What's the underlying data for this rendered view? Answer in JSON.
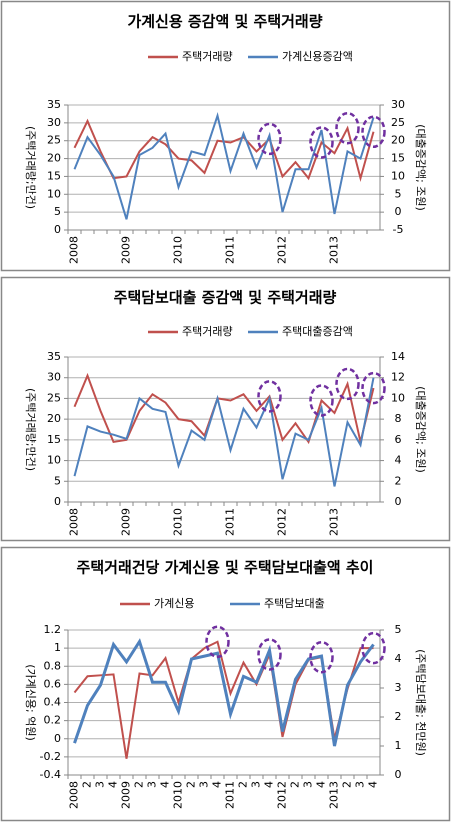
{
  "chart_data": [
    {
      "type": "line",
      "title": "가계신용 증감액  및 주택거래량",
      "categories": [
        "2008",
        null,
        null,
        null,
        "2009",
        null,
        null,
        null,
        "2010",
        null,
        null,
        null,
        "2011",
        null,
        null,
        null,
        "2012",
        null,
        null,
        null,
        "2013",
        null,
        null,
        null
      ],
      "series": [
        {
          "name": "주택거래량",
          "color": "#c0504d",
          "axis": "y",
          "values": [
            23,
            30.5,
            22,
            14.5,
            15,
            22,
            26,
            24,
            20,
            19.5,
            16,
            25,
            24.5,
            26,
            22,
            25.5,
            15,
            19,
            14.5,
            24.5,
            21.5,
            28.5,
            14.5,
            27.5
          ]
        },
        {
          "name": "가계신용증감액",
          "color": "#4f81bd",
          "axis": "y2",
          "values": [
            12,
            21,
            16,
            10,
            -2,
            16,
            18,
            22,
            7,
            17,
            16,
            27,
            11.5,
            22,
            12.5,
            21.5,
            0,
            12,
            12,
            23,
            -0.5,
            17,
            15,
            26.5
          ]
        }
      ],
      "ylim": [
        0,
        35
      ],
      "yticks": [
        0,
        5,
        10,
        15,
        20,
        25,
        30,
        35
      ],
      "y2lim": [
        -5,
        30
      ],
      "y2ticks": [
        -5,
        0,
        5,
        10,
        15,
        20,
        25,
        30
      ],
      "ylabel": "(주택거래량;만건)",
      "y2label": "(대출증감액; 조원)",
      "grid": true
    },
    {
      "type": "line",
      "title": "주택담보대출 증감액  및 주택거래량",
      "categories": [
        "2008",
        null,
        null,
        null,
        "2009",
        null,
        null,
        null,
        "2010",
        null,
        null,
        null,
        "2011",
        null,
        null,
        null,
        "2012",
        null,
        null,
        null,
        "2013",
        null,
        null,
        null
      ],
      "series": [
        {
          "name": "주택거래량",
          "color": "#c0504d",
          "axis": "y",
          "values": [
            23,
            30.5,
            22,
            14.5,
            15,
            22,
            26,
            24,
            20,
            19.5,
            16,
            25,
            24.5,
            26,
            22,
            25.5,
            15,
            19,
            14.5,
            24.5,
            21.5,
            28.5,
            14.5,
            27.5
          ]
        },
        {
          "name": "주택대출증감액",
          "color": "#4f81bd",
          "axis": "y2",
          "values": [
            2.5,
            7.3,
            6.8,
            6.5,
            6.1,
            10,
            9,
            8.7,
            3.5,
            6.9,
            6,
            10,
            5,
            9,
            7.2,
            10,
            2.2,
            6.6,
            6,
            9.1,
            1.5,
            7.7,
            5.5,
            12
          ]
        }
      ],
      "ylim": [
        0,
        35
      ],
      "yticks": [
        0,
        5,
        10,
        15,
        20,
        25,
        30,
        35
      ],
      "y2lim": [
        0,
        14
      ],
      "y2ticks": [
        0,
        2,
        4,
        6,
        8,
        10,
        12,
        14
      ],
      "ylabel": "(주택거래량;만건)",
      "y2label": "(대출증감액; 조원)",
      "grid": true
    },
    {
      "type": "line",
      "title": "주택거래건당 가계신용 및 주택담보대출액 추이",
      "categories": [
        "2008",
        "2",
        "3",
        "4",
        "2009",
        "2",
        "3",
        "4",
        "2010",
        "2",
        "3",
        "4",
        "2011",
        "2",
        "3",
        "4",
        "2012",
        "2",
        "3",
        "4",
        "2013",
        "2",
        "3",
        "4"
      ],
      "series": [
        {
          "name": "가계신용",
          "color": "#c0504d",
          "axis": "y",
          "values": [
            0.51,
            0.69,
            0.7,
            0.71,
            -0.22,
            0.72,
            0.7,
            0.89,
            0.4,
            0.88,
            1.0,
            1.07,
            0.5,
            0.84,
            0.6,
            0.93,
            0.02,
            0.6,
            0.87,
            0.9,
            0.0,
            0.55,
            1.0,
            1.0
          ]
        },
        {
          "name": "주택담보대출",
          "color": "#4f81bd",
          "axis": "y2",
          "values": [
            1.1,
            2.4,
            3.1,
            4.5,
            3.9,
            4.6,
            3.2,
            3.2,
            2.2,
            4.0,
            4.1,
            4.2,
            2.1,
            3.4,
            3.2,
            4.3,
            1.5,
            3.3,
            4.0,
            4.1,
            1.0,
            3.1,
            3.9,
            4.5
          ]
        }
      ],
      "ylim": [
        -0.4,
        1.2
      ],
      "yticks": [
        -0.4,
        -0.2,
        0,
        0.2,
        0.4,
        0.6,
        0.8,
        1,
        1.2
      ],
      "y2lim": [
        0,
        5
      ],
      "y2ticks": [
        0,
        1,
        2,
        3,
        4,
        5
      ],
      "ylabel": "(가계신용; 억원)",
      "y2label": "(주택담보대출; 천만원)",
      "grid": true
    }
  ]
}
